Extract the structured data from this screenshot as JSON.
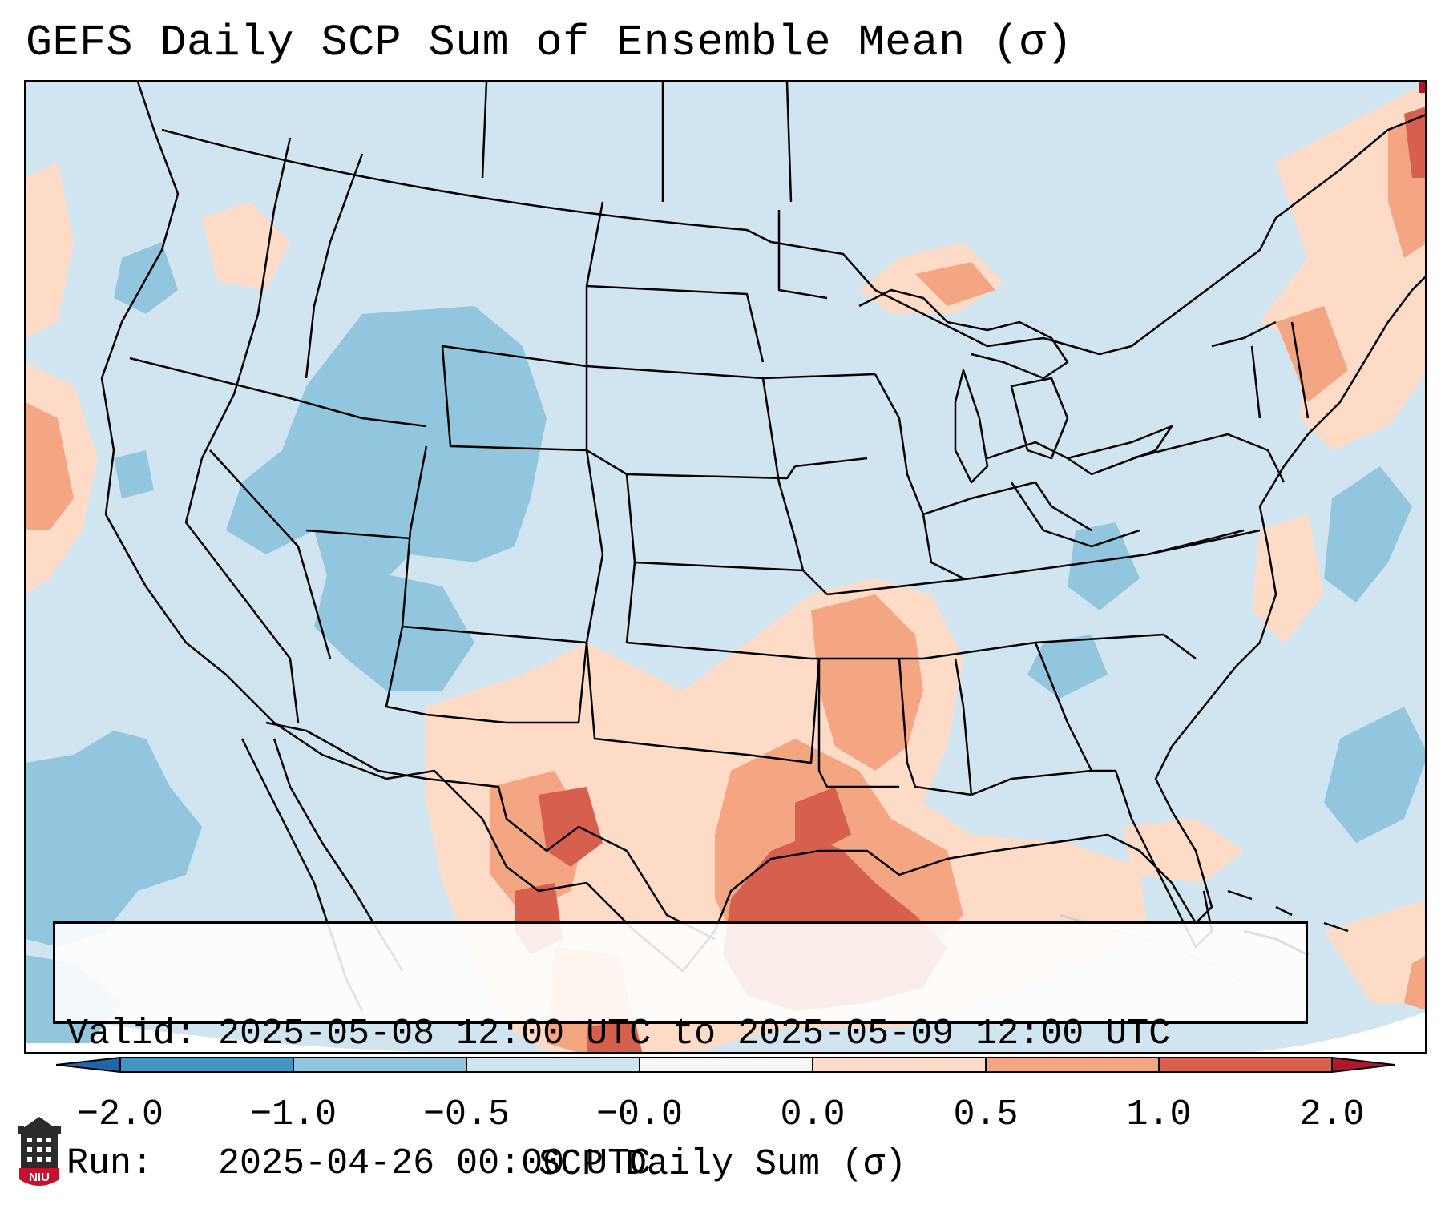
{
  "title": "GEFS Daily SCP Sum of Ensemble Mean (σ)",
  "info_box": {
    "valid_label": "Valid:",
    "valid_value": "2025-05-08 12:00 UTC to 2025-05-09 12:00 UTC",
    "run_label": "Run:  ",
    "run_value": "2025-04-26 00:00 UTC"
  },
  "colorbar": {
    "label": "SCP Daily Sum (σ)",
    "ticks": [
      "−2.0",
      "−1.0",
      "−0.5",
      "−0.0",
      "0.0",
      "0.5",
      "1.0",
      "2.0"
    ],
    "bins": [
      {
        "range": "< -2.0",
        "color": "#2166ac"
      },
      {
        "range": "-2.0 to -1.0",
        "color": "#4393c3"
      },
      {
        "range": "-1.0 to -0.5",
        "color": "#92c5de"
      },
      {
        "range": "-0.5 to -0.0",
        "color": "#d1e5f0"
      },
      {
        "range": "-0.0 to 0.0",
        "color": "#f7f7f7"
      },
      {
        "range": "0.0 to 0.5",
        "color": "#fddbc7"
      },
      {
        "range": "0.5 to 1.0",
        "color": "#f4a582"
      },
      {
        "range": "1.0 to 2.0",
        "color": "#d6604d"
      },
      {
        "range": "> 2.0",
        "color": "#b2182b"
      }
    ]
  },
  "logo": {
    "text": "NIU",
    "icon": "niu-tower-logo"
  },
  "map": {
    "projection": "Lambert conformal (CONUS)",
    "background_category": "-0.5 to -0.0",
    "highlight_regions": [
      {
        "region": "Texas Gulf Coast / Louisiana",
        "category": "1.0 to 2.0"
      },
      {
        "region": "West Texas / Big Bend",
        "category": "1.0 to 2.0"
      },
      {
        "region": "Arkansas / Mississippi Valley",
        "category": "0.5 to 1.0"
      },
      {
        "region": "Gulf of Mexico",
        "category": "0.0 to 0.5"
      },
      {
        "region": "Upper Peninsula of Michigan",
        "category": "0.5 to 1.0"
      },
      {
        "region": "New England / Atlantic Canada",
        "category": "0.5 to 1.0"
      },
      {
        "region": "Colorado / Utah / Wyoming",
        "category": "-1.0 to -0.5"
      },
      {
        "region": "Eastern Pacific off Baja",
        "category": "-1.0 to -0.5"
      },
      {
        "region": "Western Atlantic",
        "category": "-1.0 to -0.5"
      }
    ]
  }
}
